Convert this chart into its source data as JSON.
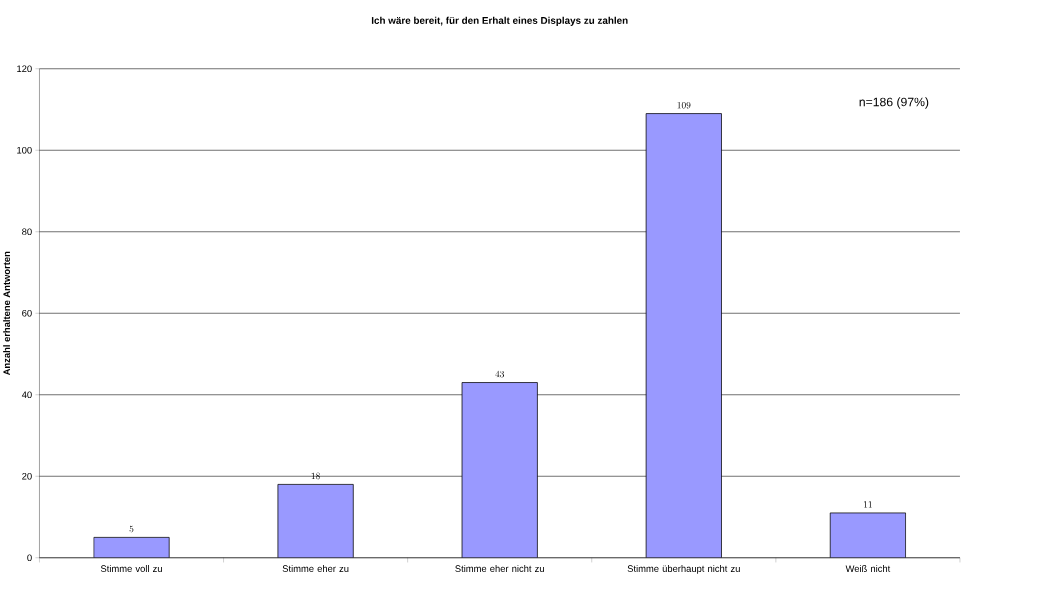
{
  "chart_data": {
    "type": "bar",
    "title": "Ich wäre bereit, für den Erhalt eines Displays zu zahlen",
    "ylabel": "Anzahl erhaltene Antworten",
    "categories": [
      "Stimme voll zu",
      "Stimme eher zu",
      "Stimme eher nicht zu",
      "Stimme überhaupt nicht zu",
      "Weiß nicht"
    ],
    "values": [
      5,
      18,
      43,
      109,
      11
    ],
    "color": "#9999ff",
    "ylim": [
      0,
      120
    ],
    "yticks": [
      0,
      20,
      40,
      60,
      80,
      100,
      120
    ],
    "grid": "y",
    "data_labels": true,
    "annotations": [
      "n=186 (97%)"
    ]
  }
}
